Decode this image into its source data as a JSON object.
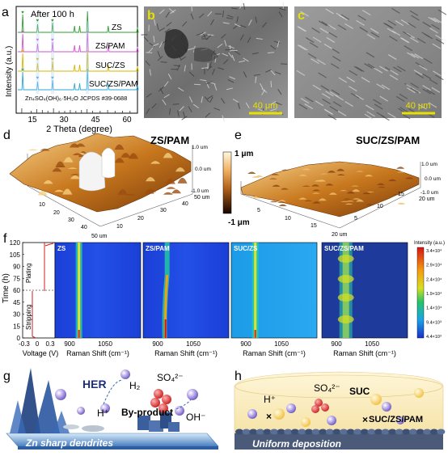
{
  "panels": {
    "a": "a",
    "b": "b",
    "c": "c",
    "d": "d",
    "e": "e",
    "f": "f",
    "g": "g",
    "h": "h"
  },
  "xrd": {
    "annotation": "After 100 h",
    "ylabel": "Intensity (a.u.)",
    "xlabel": "2 Theta (degree)",
    "xticks": [
      "15",
      "30",
      "45",
      "60"
    ],
    "series": [
      "ZS",
      "ZS/PAM",
      "SUC/ZS",
      "SUC/ZS/PAM"
    ],
    "reference": "Zn₄SO₄(OH)₆·5H₂O JCPDS #39-0688",
    "colors": [
      "#2e9e2e",
      "#d050d0",
      "#d8b400",
      "#2aa6d8"
    ]
  },
  "sem": {
    "scale_b": "40 μm",
    "scale_c": "40 μm"
  },
  "afm": {
    "title_d": "ZS/PAM",
    "title_e": "SUC/ZS/PAM",
    "cbar_top": "1 μm",
    "cbar_bottom": "-1 μm",
    "z_ticks": [
      "1.0 um",
      "0.0 um",
      "-1.0 um"
    ],
    "d_x_ticks": [
      "10",
      "20",
      "30",
      "40",
      "50 um"
    ],
    "d_y_ticks": [
      "50 um",
      "40",
      "30",
      "20",
      "10"
    ],
    "e_x_ticks": [
      "5",
      "10",
      "15",
      "20 um"
    ],
    "e_y_ticks": [
      "20 um",
      "15",
      "10",
      "5"
    ]
  },
  "raman": {
    "ylabel": "Time (h)",
    "yticks": [
      "0",
      "15",
      "30",
      "45",
      "60",
      "75",
      "90",
      "105",
      "120"
    ],
    "voltage_label": "Voltage (V)",
    "voltage_ticks": [
      "-0.3",
      "0",
      "0.3"
    ],
    "plating": "Plating",
    "stripping": "Stripping",
    "xlabel": "Raman Shift (cm⁻¹)",
    "xticks": [
      "900",
      "1050"
    ],
    "maps": [
      "ZS",
      "ZS/PAM",
      "SUC/ZS",
      "SUC/ZS/PAM"
    ],
    "cbar_title": "Intensity (a.u.)",
    "cbar_ticks": [
      "3.4×10⁴",
      "2.9×10⁴",
      "2.4×10⁴",
      "1.9×10⁴",
      "1.4×10⁴",
      "9.4×10³",
      "4.4×10³"
    ]
  },
  "schematic_g": {
    "her": "HER",
    "h2": "H₂",
    "so4": "SO₄²⁻",
    "hplus": "H⁺",
    "byproduct": "By-product",
    "oh": "OH⁻",
    "caption": "Zn sharp dendrites"
  },
  "schematic_h": {
    "hplus": "H⁺",
    "so4": "SO₄²⁻",
    "suc": "SUC",
    "electrolyte": "SUC/ZS/PAM",
    "caption": "Uniform deposition"
  }
}
